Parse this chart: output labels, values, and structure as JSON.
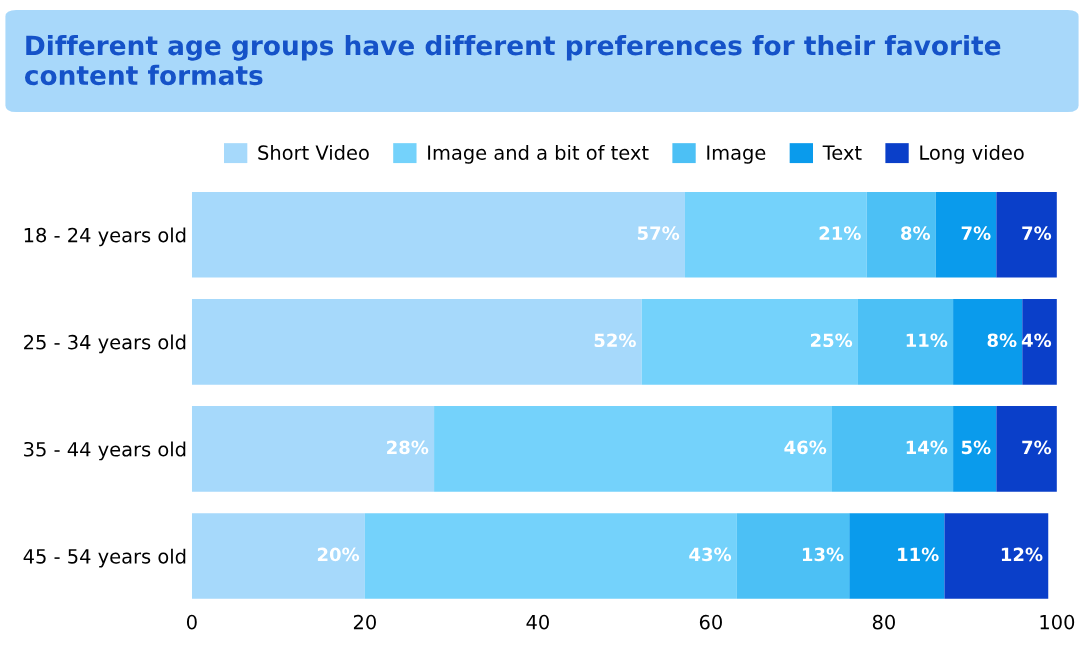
{
  "chart_data": {
    "type": "bar",
    "orientation": "horizontal",
    "stacked": true,
    "title": "Different age groups have different preferences for their favorite content formats",
    "categories": [
      "18 - 24 years old",
      "25 - 34 years old",
      "35 - 44 years old",
      "45 - 54 years old"
    ],
    "series": [
      {
        "name": "Short Video",
        "color": "#a6d9fb",
        "values": [
          57,
          52,
          28,
          20
        ],
        "value_labels": [
          "57%",
          "52%",
          "28%",
          "20%"
        ]
      },
      {
        "name": "Image and a bit of text",
        "color": "#74d2fb",
        "values": [
          21,
          25,
          46,
          43
        ],
        "value_labels": [
          "21%",
          "25%",
          "46%",
          "43%"
        ]
      },
      {
        "name": "Image",
        "color": "#4cc0f5",
        "values": [
          8,
          11,
          14,
          13
        ],
        "value_labels": [
          "8%",
          "11%",
          "14%",
          "13%"
        ]
      },
      {
        "name": "Text",
        "color": "#0a9bec",
        "values": [
          7,
          8,
          5,
          11
        ],
        "value_labels": [
          "7%",
          "8%",
          "5%",
          "11%"
        ]
      },
      {
        "name": "Long video",
        "color": "#0a3fc9",
        "values": [
          7,
          4,
          7,
          12
        ],
        "value_labels": [
          "7%",
          "4%",
          "7%",
          "12%"
        ]
      }
    ],
    "xlim": [
      0,
      100
    ],
    "xticks": [
      0,
      20,
      40,
      60,
      80,
      100
    ],
    "grid": false,
    "legend": "top"
  }
}
